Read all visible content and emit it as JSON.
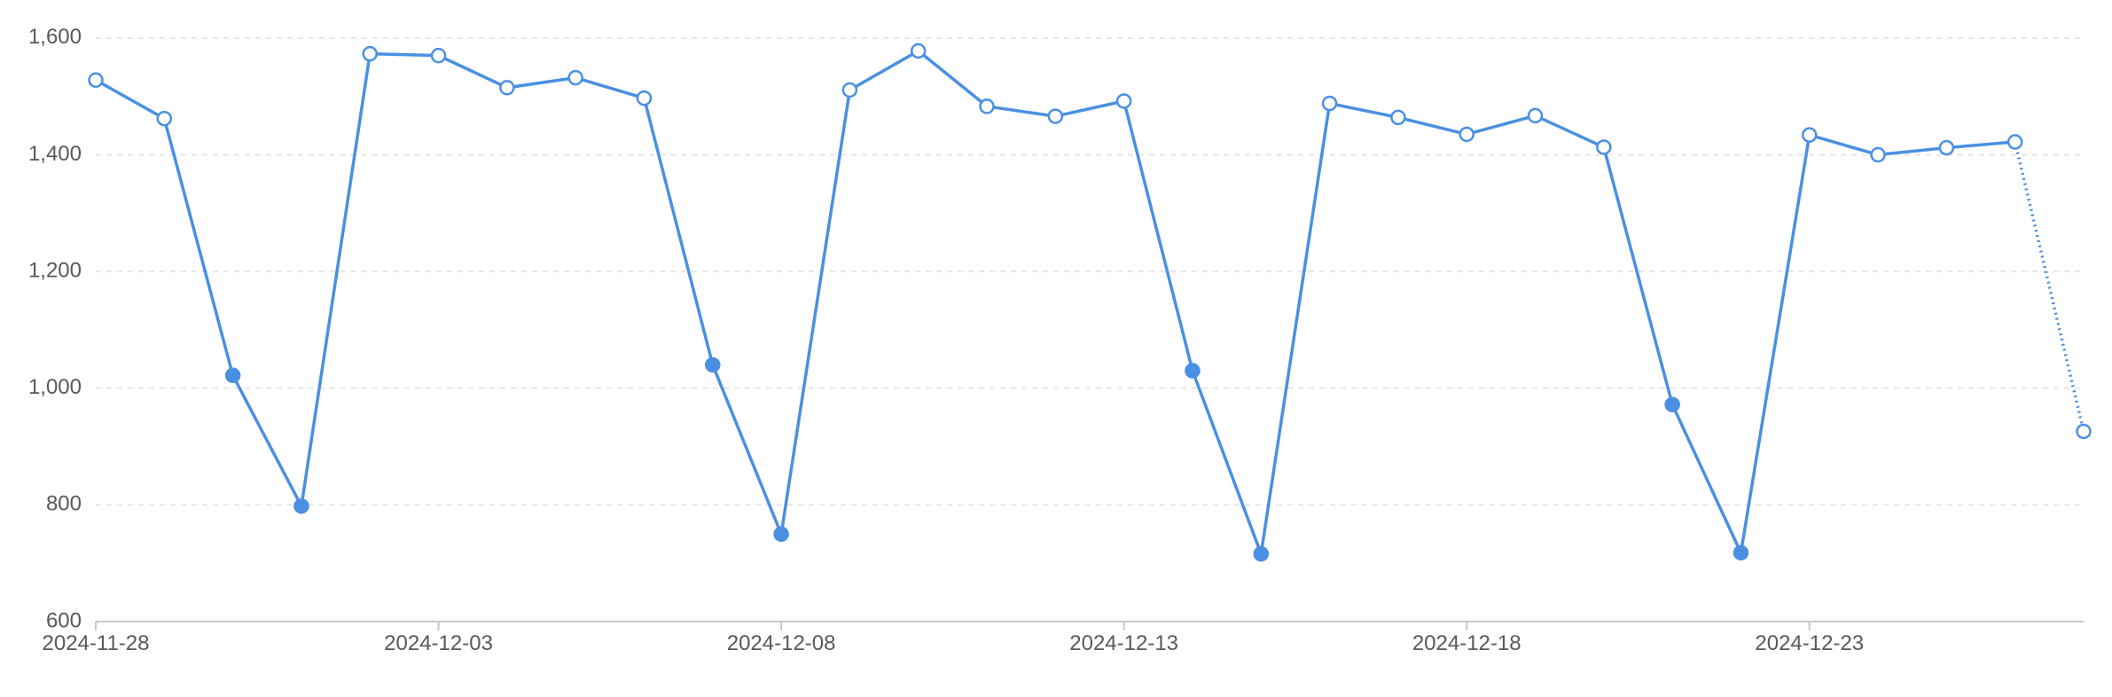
{
  "chart_data": {
    "type": "line",
    "title": "",
    "xlabel": "",
    "ylabel": "",
    "x_start": "2024-11-28",
    "x_end": "2024-12-27",
    "x_tick_labels": [
      "2024-11-28",
      "2024-12-03",
      "2024-12-08",
      "2024-12-13",
      "2024-12-18",
      "2024-12-23"
    ],
    "ylim": [
      600,
      1650
    ],
    "y_ticks": [
      600,
      800,
      1000,
      1200,
      1400,
      1600
    ],
    "y_tick_labels": [
      "600",
      "800",
      "1,000",
      "1,200",
      "1,400",
      "1,600"
    ],
    "grid": true,
    "line_color": "#4a90e2",
    "series": [
      {
        "points": [
          {
            "x": "2024-11-28",
            "y": 1528,
            "marker": "hollow"
          },
          {
            "x": "2024-11-29",
            "y": 1462,
            "marker": "hollow"
          },
          {
            "x": "2024-11-30",
            "y": 1022,
            "marker": "filled"
          },
          {
            "x": "2024-12-01",
            "y": 798,
            "marker": "filled"
          },
          {
            "x": "2024-12-02",
            "y": 1573,
            "marker": "hollow"
          },
          {
            "x": "2024-12-03",
            "y": 1570,
            "marker": "hollow"
          },
          {
            "x": "2024-12-04",
            "y": 1515,
            "marker": "hollow"
          },
          {
            "x": "2024-12-05",
            "y": 1532,
            "marker": "hollow"
          },
          {
            "x": "2024-12-06",
            "y": 1497,
            "marker": "hollow"
          },
          {
            "x": "2024-12-07",
            "y": 1040,
            "marker": "filled"
          },
          {
            "x": "2024-12-08",
            "y": 750,
            "marker": "filled"
          },
          {
            "x": "2024-12-09",
            "y": 1511,
            "marker": "hollow"
          },
          {
            "x": "2024-12-10",
            "y": 1578,
            "marker": "hollow"
          },
          {
            "x": "2024-12-11",
            "y": 1483,
            "marker": "hollow"
          },
          {
            "x": "2024-12-12",
            "y": 1466,
            "marker": "hollow"
          },
          {
            "x": "2024-12-13",
            "y": 1492,
            "marker": "hollow"
          },
          {
            "x": "2024-12-14",
            "y": 1030,
            "marker": "filled"
          },
          {
            "x": "2024-12-15",
            "y": 716,
            "marker": "filled"
          },
          {
            "x": "2024-12-16",
            "y": 1488,
            "marker": "hollow"
          },
          {
            "x": "2024-12-17",
            "y": 1464,
            "marker": "hollow"
          },
          {
            "x": "2024-12-18",
            "y": 1435,
            "marker": "hollow"
          },
          {
            "x": "2024-12-19",
            "y": 1467,
            "marker": "hollow"
          },
          {
            "x": "2024-12-20",
            "y": 1413,
            "marker": "hollow"
          },
          {
            "x": "2024-12-21",
            "y": 972,
            "marker": "filled"
          },
          {
            "x": "2024-12-22",
            "y": 718,
            "marker": "filled"
          },
          {
            "x": "2024-12-23",
            "y": 1434,
            "marker": "hollow"
          },
          {
            "x": "2024-12-24",
            "y": 1400,
            "marker": "hollow"
          },
          {
            "x": "2024-12-25",
            "y": 1412,
            "marker": "hollow"
          },
          {
            "x": "2024-12-26",
            "y": 1422,
            "marker": "hollow"
          },
          {
            "x": "2024-12-27",
            "y": 926,
            "marker": "hollow",
            "segment_style": "dotted"
          }
        ]
      }
    ]
  }
}
